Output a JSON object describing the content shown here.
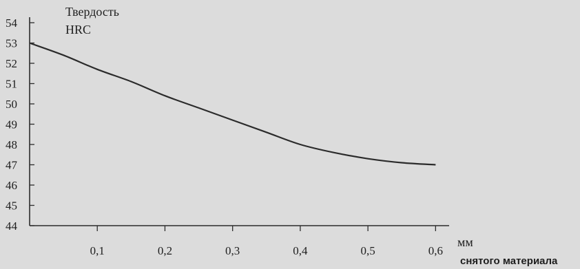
{
  "chart_data": {
    "type": "line",
    "ylabel_line1": "Твердость",
    "ylabel_line2": "HRC",
    "xlabel": "мм",
    "xlim": [
      0,
      0.62
    ],
    "ylim": [
      44,
      54
    ],
    "x_ticks": [
      0.1,
      0.2,
      0.3,
      0.4,
      0.5,
      0.6
    ],
    "x_tick_labels": [
      "0,1",
      "0,2",
      "0,3",
      "0,4",
      "0,5",
      "0,6"
    ],
    "y_ticks": [
      44,
      45,
      46,
      47,
      48,
      49,
      50,
      51,
      52,
      53,
      54
    ],
    "y_tick_labels": [
      "44",
      "45",
      "46",
      "47",
      "48",
      "49",
      "50",
      "51",
      "52",
      "53",
      "54"
    ],
    "series": [
      {
        "x": [
          0.0,
          0.05,
          0.1,
          0.15,
          0.2,
          0.25,
          0.3,
          0.35,
          0.4,
          0.45,
          0.5,
          0.55,
          0.6
        ],
        "y": [
          53.0,
          52.4,
          51.7,
          51.1,
          50.4,
          49.8,
          49.2,
          48.6,
          48.0,
          47.6,
          47.3,
          47.1,
          47.0
        ]
      }
    ],
    "grid": false,
    "line_color": "#2b2b2b"
  },
  "caption": "снятого материала"
}
